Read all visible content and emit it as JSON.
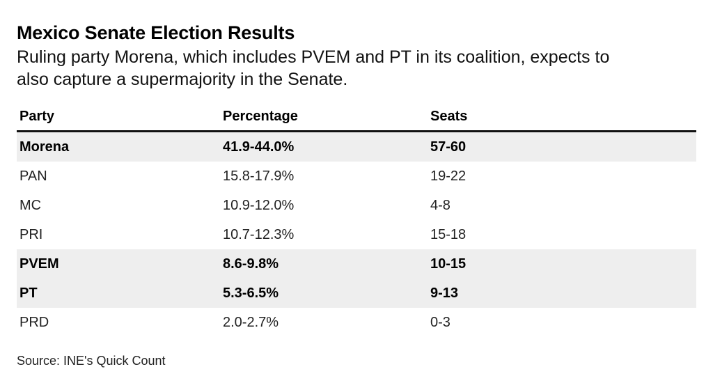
{
  "title": "Mexico Senate Election Results",
  "subtitle_lines": [
    "Ruling party Morena, which includes PVEM and PT in its coalition, expects to",
    "also capture a supermajority in the Senate."
  ],
  "source": "Source: INE's Quick Count",
  "chart_data": {
    "type": "table",
    "title": "Mexico Senate Election Results",
    "columns": [
      "Party",
      "Percentage",
      "Seats"
    ],
    "rows": [
      {
        "party": "Morena",
        "percentage": "41.9-44.0%",
        "seats": "57-60",
        "highlight": true
      },
      {
        "party": "PAN",
        "percentage": "15.8-17.9%",
        "seats": "19-22",
        "highlight": false
      },
      {
        "party": "MC",
        "percentage": "10.9-12.0%",
        "seats": "4-8",
        "highlight": false
      },
      {
        "party": "PRI",
        "percentage": "10.7-12.3%",
        "seats": "15-18",
        "highlight": false
      },
      {
        "party": "PVEM",
        "percentage": "8.6-9.8%",
        "seats": "10-15",
        "highlight": true
      },
      {
        "party": "PT",
        "percentage": "5.3-6.5%",
        "seats": "9-13",
        "highlight": true
      },
      {
        "party": "PRD",
        "percentage": "2.0-2.7%",
        "seats": "0-3",
        "highlight": false
      }
    ]
  }
}
